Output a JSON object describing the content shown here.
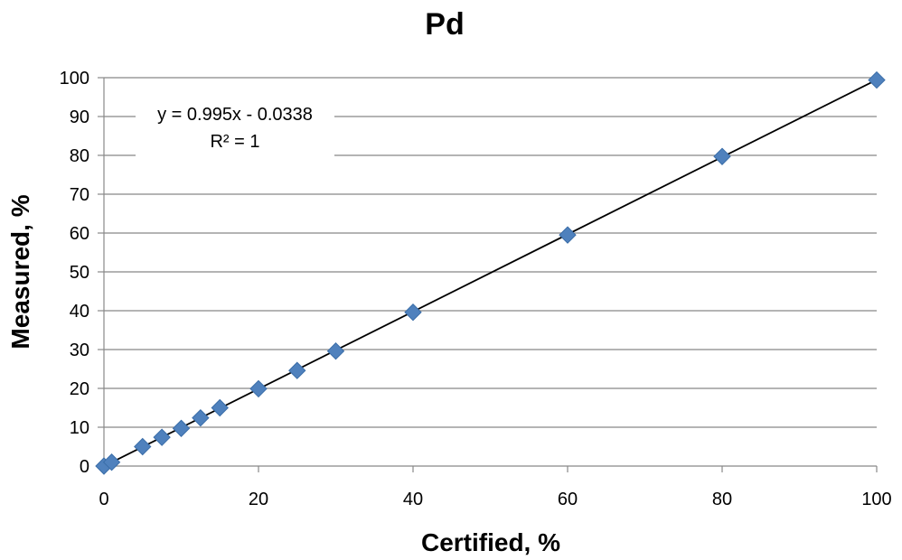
{
  "chart_data": {
    "type": "scatter",
    "title": "Pd",
    "xlabel": "Certified, %",
    "ylabel": "Measured, %",
    "xlim": [
      0,
      100
    ],
    "ylim": [
      0,
      100
    ],
    "x_ticks": [
      "0",
      "20",
      "40",
      "60",
      "80",
      "100"
    ],
    "y_ticks": [
      "0",
      "10",
      "20",
      "30",
      "40",
      "50",
      "60",
      "70",
      "80",
      "90",
      "100"
    ],
    "grid": "horizontal",
    "series": [
      {
        "marker": "diamond",
        "color": "#4F81BD",
        "points": [
          [
            0,
            0
          ],
          [
            1,
            1
          ],
          [
            5,
            5
          ],
          [
            7.5,
            7.4
          ],
          [
            10,
            9.7
          ],
          [
            12.5,
            12.4
          ],
          [
            15,
            15
          ],
          [
            20,
            19.9
          ],
          [
            25,
            24.6
          ],
          [
            30,
            29.6
          ],
          [
            40,
            39.6
          ],
          [
            60,
            59.5
          ],
          [
            80,
            79.7
          ],
          [
            100,
            99.4
          ]
        ]
      }
    ],
    "trendline": {
      "slope": 0.995,
      "intercept": -0.0338,
      "color": "#000000",
      "equation_label": "y = 0.995x - 0.0338",
      "r2_label": "R² = 1"
    }
  }
}
